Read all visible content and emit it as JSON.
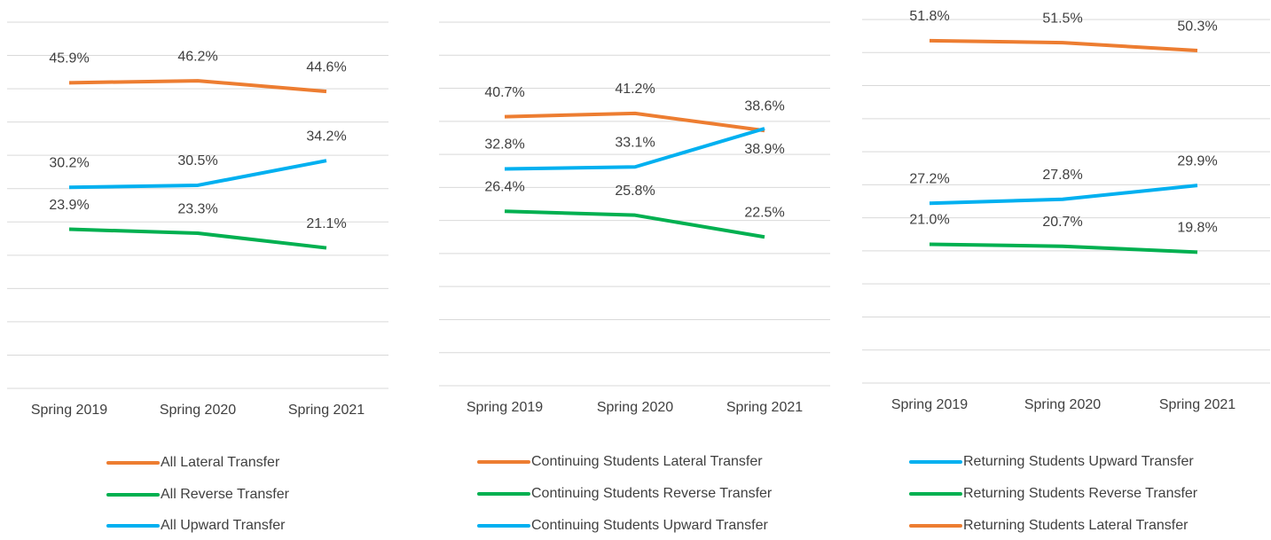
{
  "chart_data": [
    {
      "type": "line",
      "categories": [
        "Spring 2019",
        "Spring 2020",
        "Spring 2021"
      ],
      "series": [
        {
          "name": "All Lateral Transfer",
          "color": "#ed7d31",
          "values": [
            45.9,
            46.2,
            44.6
          ],
          "value_labels": [
            "45.9%",
            "46.2%",
            "44.6%"
          ]
        },
        {
          "name": "All Reverse Transfer",
          "color": "#00b050",
          "values": [
            23.9,
            23.3,
            21.1
          ],
          "value_labels": [
            "23.9%",
            "23.3%",
            "21.1%"
          ]
        },
        {
          "name": "All Upward Transfer",
          "color": "#00b0f0",
          "values": [
            30.2,
            30.5,
            34.2
          ],
          "value_labels": [
            "30.2%",
            "30.5%",
            "34.2%"
          ]
        }
      ],
      "ylim": [
        0,
        55
      ],
      "yticks": [
        0,
        5,
        10,
        15,
        20,
        25,
        30,
        35,
        40,
        45,
        50,
        55
      ],
      "grid": true
    },
    {
      "type": "line",
      "categories": [
        "Spring 2019",
        "Spring 2020",
        "Spring 2021"
      ],
      "series": [
        {
          "name": "Continuing Students Lateral Transfer",
          "color": "#ed7d31",
          "values": [
            40.7,
            41.2,
            38.6
          ],
          "value_labels": [
            "40.7%",
            "41.2%",
            "38.6%"
          ]
        },
        {
          "name": "Continuing Students Reverse Transfer",
          "color": "#00b050",
          "values": [
            26.4,
            25.8,
            22.5
          ],
          "value_labels": [
            "26.4%",
            "25.8%",
            "22.5%"
          ]
        },
        {
          "name": "Continuing Students Upward Transfer",
          "color": "#00b0f0",
          "values": [
            32.8,
            33.1,
            38.9
          ],
          "value_labels": [
            "32.8%",
            "33.1%",
            "38.9%"
          ]
        }
      ],
      "ylim": [
        0,
        55
      ],
      "yticks": [
        0,
        5,
        10,
        15,
        20,
        25,
        30,
        35,
        40,
        45,
        50,
        55
      ],
      "grid": true
    },
    {
      "type": "line",
      "categories": [
        "Spring 2019",
        "Spring 2020",
        "Spring 2021"
      ],
      "series": [
        {
          "name": "Returning Students Upward Transfer",
          "color": "#00b0f0",
          "values": [
            27.2,
            27.8,
            29.9
          ],
          "value_labels": [
            "27.2%",
            "27.8%",
            "29.9%"
          ]
        },
        {
          "name": "Returning Students Reverse Transfer",
          "color": "#00b050",
          "values": [
            21.0,
            20.7,
            19.8
          ],
          "value_labels": [
            "21.0%",
            "20.7%",
            "19.8%"
          ]
        },
        {
          "name": "Returning Students Lateral Transfer",
          "color": "#ed7d31",
          "values": [
            51.8,
            51.5,
            50.3
          ],
          "value_labels": [
            "51.8%",
            "51.5%",
            "50.3%"
          ]
        }
      ],
      "ylim": [
        0,
        55
      ],
      "yticks": [
        0,
        5,
        10,
        15,
        20,
        25,
        30,
        35,
        40,
        45,
        50,
        55
      ],
      "grid": true
    }
  ]
}
